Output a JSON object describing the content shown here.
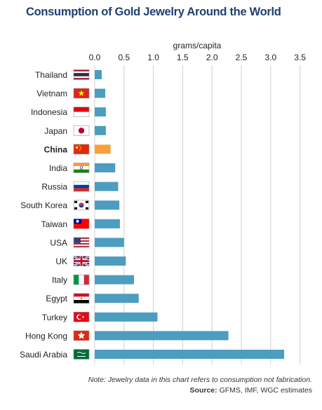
{
  "chart_data": {
    "type": "bar",
    "orientation": "horizontal",
    "title": "Consumption of Gold Jewelry Around the World",
    "xlabel": "grams/capita",
    "xlim": [
      0,
      3.5
    ],
    "xticks": [
      "0.0",
      "0.5",
      "1.0",
      "1.5",
      "2.0",
      "2.5",
      "3.0",
      "3.5"
    ],
    "tick_values": [
      0,
      0.5,
      1.0,
      1.5,
      2.0,
      2.5,
      3.0,
      3.5
    ],
    "grid": true,
    "bar_color": "#4c9dc0",
    "highlight_color": "#f7a13a",
    "categories": [
      "Thailand",
      "Vietnam",
      "Indonesia",
      "Japan",
      "China",
      "India",
      "Russia",
      "South Korea",
      "Taiwan",
      "USA",
      "UK",
      "Italy",
      "Egypt",
      "Turkey",
      "Hong Kong",
      "Saudi Arabia"
    ],
    "values": [
      0.12,
      0.18,
      0.19,
      0.19,
      0.27,
      0.35,
      0.4,
      0.42,
      0.43,
      0.5,
      0.53,
      0.67,
      0.75,
      1.07,
      2.28,
      3.23
    ],
    "highlight": "China",
    "flag_icons": [
      "thailand-flag-icon",
      "vietnam-flag-icon",
      "indonesia-flag-icon",
      "japan-flag-icon",
      "china-flag-icon",
      "india-flag-icon",
      "russia-flag-icon",
      "south-korea-flag-icon",
      "taiwan-flag-icon",
      "usa-flag-icon",
      "uk-flag-icon",
      "italy-flag-icon",
      "egypt-flag-icon",
      "turkey-flag-icon",
      "hong-kong-flag-icon",
      "saudi-arabia-flag-icon"
    ]
  },
  "note": "Note: Jewelry data in this chart refers to consumption not fabrication.",
  "source_label": "Source:",
  "source_text": "GFMS, IMF, WGC estimates"
}
